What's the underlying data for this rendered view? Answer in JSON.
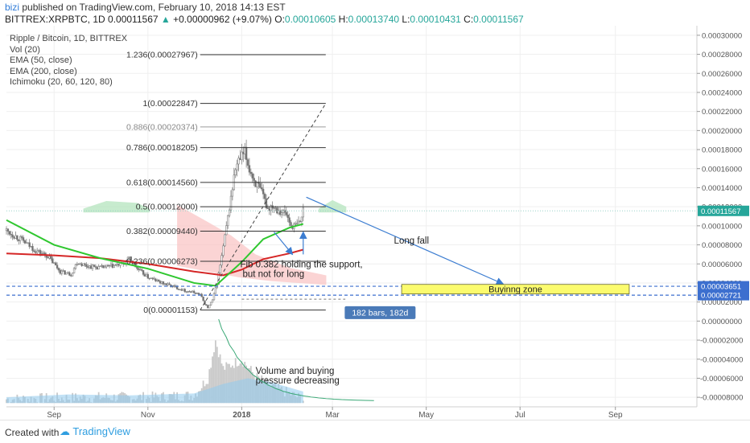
{
  "header": {
    "user": "bizi",
    "published": "published on TradingView.com, February 10, 2018 14:13 EST",
    "symbol": "BITTREX:XRPBTC, 1D",
    "last": "0.00011567",
    "change": "+0.00000962 (+9.07%)",
    "o_label": "O:",
    "o": "0.00010605",
    "h_label": "H:",
    "h": "0.00013740",
    "l_label": "L:",
    "l": "0.00010431",
    "c_label": "C:",
    "c": "0.00011567"
  },
  "legend": [
    "Ripple / Bitcoin, 1D, BITTREX",
    "Vol (20)",
    "EMA (50, close)",
    "EMA (200, close)",
    "Ichimoku (20, 60, 120, 80)"
  ],
  "footer": {
    "created_with": "Created with",
    "brand": "TradingView"
  },
  "colors": {
    "up": "#26a69a",
    "down": "#ef5350",
    "candle": "#808080",
    "ema50": "#2fc72f",
    "ema200": "#d52626",
    "cloud_green": "#b9e6c2",
    "cloud_red": "#f9c6c6",
    "volume": "#c9c9c9",
    "volume_area": "#8fcbef",
    "arrow": "#3c7dd1",
    "buy_zone": "#fbfb6e",
    "label_bg": "#4a7ab8",
    "price_tag": "#26a69a"
  },
  "chart_data": {
    "type": "candlestick",
    "title": "Ripple / Bitcoin, 1D, BITTREX",
    "price_axis": {
      "ticks": [
        "0.00030000",
        "0.00028000",
        "0.00026000",
        "0.00024000",
        "0.00022000",
        "0.00020000",
        "0.00018000",
        "0.00016000",
        "0.00014000",
        "0.00012000",
        "0.00010000",
        "0.00008000",
        "0.00006000",
        "0.00004000",
        "0.00002000",
        "0.00000000"
      ],
      "tick_values": [
        0.0003,
        0.00028,
        0.00026,
        0.00024,
        0.00022,
        0.0002,
        0.00018,
        0.00016,
        0.00014,
        0.00012,
        0.0001,
        8e-05,
        6e-05,
        4e-05,
        2e-05,
        0
      ],
      "volume_ticks": [
        "-0.00002000",
        "-0.00004000",
        "-0.00006000",
        "-0.00008000"
      ],
      "volume_tick_values": [
        -2e-05,
        -4e-05,
        -6e-05,
        -8e-05
      ],
      "ylim": [
        -9e-05,
        0.00031
      ]
    },
    "x_axis": {
      "ticks": [
        "Sep",
        "Nov",
        "2018",
        "Mar",
        "May",
        "Jul",
        "Sep"
      ],
      "tick_dates": [
        "2017-09-01",
        "2017-11-01",
        "2018-01-01",
        "2018-03-01",
        "2018-05-01",
        "2018-07-01",
        "2018-09-01"
      ],
      "xlim": [
        "2017-08-01",
        "2018-10-24"
      ]
    },
    "current_price": {
      "label": "0.00011567",
      "value": 0.00011567
    },
    "zone_prices": [
      {
        "label": "0.00003651",
        "value": 3.651e-05
      },
      {
        "label": "0.00002721",
        "value": 2.721e-05
      }
    ],
    "fibonacci": [
      {
        "label": "1.236(0.00027967)",
        "value": 0.00027967
      },
      {
        "label": "1(0.00022847)",
        "value": 0.00022847
      },
      {
        "label": "0.886(0.00020374)",
        "value": 0.00020374
      },
      {
        "label": "0.786(0.00018205)",
        "value": 0.00018205
      },
      {
        "label": "0.618(0.00014560)",
        "value": 0.0001456
      },
      {
        "label": "0.5(0.00012000)",
        "value": 0.00012
      },
      {
        "label": "0.382(0.00009440)",
        "value": 9.44e-05
      },
      {
        "label": "0.236(0.00006273)",
        "value": 6.273e-05
      },
      {
        "label": "0(0.00001153)",
        "value": 1.153e-05
      }
    ],
    "fib_range": [
      "2017-12-05",
      "2018-02-10"
    ],
    "price_path": [
      [
        "2017-08-01",
        9.5e-05
      ],
      [
        "2017-08-10",
        8.6e-05
      ],
      [
        "2017-08-20",
        7.4e-05
      ],
      [
        "2017-08-28",
        6.8e-05
      ],
      [
        "2017-09-05",
        5.2e-05
      ],
      [
        "2017-09-12",
        4.9e-05
      ],
      [
        "2017-09-16",
        6.2e-05
      ],
      [
        "2017-09-22",
        5.8e-05
      ],
      [
        "2017-10-01",
        5.6e-05
      ],
      [
        "2017-10-10",
        5.8e-05
      ],
      [
        "2017-10-16",
        6e-05
      ],
      [
        "2017-10-20",
        6.6e-05
      ],
      [
        "2017-10-25",
        5.5e-05
      ],
      [
        "2017-11-01",
        4.6e-05
      ],
      [
        "2017-11-10",
        4e-05
      ],
      [
        "2017-11-18",
        3.6e-05
      ],
      [
        "2017-11-25",
        3.2e-05
      ],
      [
        "2017-12-01",
        3e-05
      ],
      [
        "2017-12-05",
        2.8e-05
      ],
      [
        "2017-12-08",
        1.8e-05
      ],
      [
        "2017-12-10",
        1.4e-05
      ],
      [
        "2017-12-13",
        2.2e-05
      ],
      [
        "2017-12-16",
        4e-05
      ],
      [
        "2017-12-19",
        6.8e-05
      ],
      [
        "2017-12-22",
        9.8e-05
      ],
      [
        "2017-12-25",
        0.00013
      ],
      [
        "2017-12-28",
        0.00016
      ],
      [
        "2017-12-31",
        0.00017
      ],
      [
        "2018-01-03",
        0.000176
      ],
      [
        "2018-01-06",
        0.00016
      ],
      [
        "2018-01-09",
        0.000148
      ],
      [
        "2018-01-12",
        0.00014
      ],
      [
        "2018-01-15",
        0.00013
      ],
      [
        "2018-01-18",
        0.000118
      ],
      [
        "2018-01-21",
        0.000122
      ],
      [
        "2018-01-24",
        0.000118
      ],
      [
        "2018-01-27",
        0.000115
      ],
      [
        "2018-01-30",
        0.000112
      ],
      [
        "2018-02-02",
        0.0001
      ],
      [
        "2018-02-05",
        0.0001
      ],
      [
        "2018-02-08",
        0.000104
      ],
      [
        "2018-02-10",
        0.000116
      ]
    ],
    "ema50": [
      [
        "2017-08-01",
        0.000106
      ],
      [
        "2017-09-01",
        8e-05
      ],
      [
        "2017-10-01",
        6.6e-05
      ],
      [
        "2017-11-01",
        5.5e-05
      ],
      [
        "2017-12-01",
        4e-05
      ],
      [
        "2017-12-15",
        3.7e-05
      ],
      [
        "2018-01-01",
        6.2e-05
      ],
      [
        "2018-01-15",
        8.6e-05
      ],
      [
        "2018-02-01",
        9.8e-05
      ],
      [
        "2018-02-10",
        0.000102
      ]
    ],
    "ema200": [
      [
        "2017-08-01",
        7.1e-05
      ],
      [
        "2017-09-01",
        6.9e-05
      ],
      [
        "2017-10-01",
        6.6e-05
      ],
      [
        "2017-11-01",
        6e-05
      ],
      [
        "2017-12-01",
        5.2e-05
      ],
      [
        "2017-12-20",
        4.8e-05
      ],
      [
        "2018-01-01",
        5.4e-05
      ],
      [
        "2018-01-15",
        6.5e-05
      ],
      [
        "2018-02-01",
        7.1e-05
      ],
      [
        "2018-02-10",
        7.5e-05
      ]
    ],
    "volume_path": [
      [
        "2017-08-01",
        -8.2e-05
      ],
      [
        "2017-09-01",
        -8.1e-05
      ],
      [
        "2017-10-01",
        -8e-05
      ],
      [
        "2017-11-01",
        -8e-05
      ],
      [
        "2017-12-01",
        -7.8e-05
      ],
      [
        "2017-12-10",
        -6e-05
      ],
      [
        "2017-12-15",
        -2e-05
      ],
      [
        "2017-12-20",
        -5e-05
      ],
      [
        "2018-01-01",
        -4e-05
      ],
      [
        "2018-01-10",
        -5.8e-05
      ],
      [
        "2018-01-20",
        -6.8e-05
      ],
      [
        "2018-02-01",
        -7.6e-05
      ],
      [
        "2018-02-10",
        -8.2e-05
      ]
    ],
    "annotations": {
      "fib_note": "Fib 0.382 holding the support,\nbut not for long",
      "long_fall": "Long fall",
      "buy_zone": "Buyinng zone",
      "bars_label": "182 bars, 182d",
      "volume_note": "Volume and buying\npressure decreasing"
    },
    "buy_zone_range": [
      "2018-04-15",
      "2018-09-10"
    ],
    "projection_start": "2018-01-01",
    "projection_end": "2018-03-01"
  }
}
